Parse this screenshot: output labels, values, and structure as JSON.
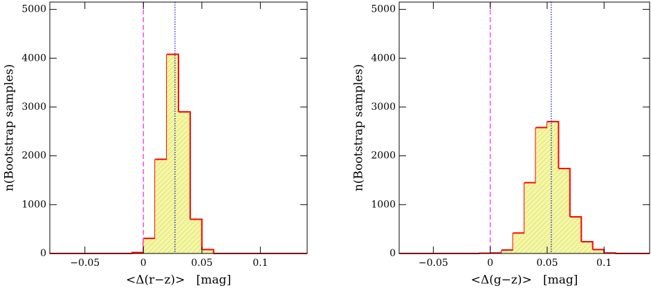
{
  "chart_data": [
    {
      "type": "histogram",
      "ylabel": "n(Bootstrap samples)",
      "xlabel": "<Δ(r−z)>   [mag]",
      "bins": [
        -0.08,
        -0.07,
        -0.06,
        -0.05,
        -0.04,
        -0.03,
        -0.02,
        -0.01,
        0,
        0.01,
        0.02,
        0.03,
        0.04,
        0.05,
        0.06,
        0.07,
        0.08,
        0.09,
        0.1,
        0.11,
        0.12,
        0.13,
        0.14
      ],
      "values": [
        0,
        0,
        0,
        0,
        0,
        0,
        0,
        20,
        310,
        1930,
        4080,
        2900,
        700,
        80,
        0,
        0,
        0,
        0,
        0,
        0,
        0,
        0
      ],
      "color": "#ff0000",
      "fill": "#eef08a",
      "xlim": [
        -0.08,
        0.14
      ],
      "ylim": [
        0,
        5150
      ],
      "xticks": [
        {
          "value": -0.05,
          "label": "−0.05"
        },
        0,
        0.05,
        0.1
      ],
      "yticks": [
        0,
        1000,
        2000,
        3000,
        4000,
        5000
      ],
      "vlines": [
        {
          "x": 0,
          "color": "#ff44ff",
          "style": "dashed"
        },
        {
          "x": 0.027,
          "color": "#0000cc",
          "style": "dotted"
        }
      ]
    },
    {
      "type": "histogram",
      "ylabel": "n(Bootstrap samples)",
      "xlabel": "<Δ(g−z)>   [mag]",
      "bins": [
        -0.08,
        -0.07,
        -0.06,
        -0.05,
        -0.04,
        -0.03,
        -0.02,
        -0.01,
        0,
        0.01,
        0.02,
        0.03,
        0.04,
        0.05,
        0.06,
        0.07,
        0.08,
        0.09,
        0.1,
        0.11,
        0.12,
        0.13,
        0.14
      ],
      "values": [
        0,
        0,
        0,
        0,
        0,
        0,
        0,
        5,
        10,
        70,
        420,
        1450,
        2580,
        2700,
        1740,
        750,
        240,
        80,
        10,
        0,
        0,
        0
      ],
      "color": "#ff0000",
      "fill": "#eef08a",
      "xlim": [
        -0.08,
        0.14
      ],
      "ylim": [
        0,
        5150
      ],
      "xticks": [
        {
          "value": -0.05,
          "label": "−0.05"
        },
        0,
        0.05,
        0.1
      ],
      "yticks": [
        0,
        1000,
        2000,
        3000,
        4000,
        5000
      ],
      "vlines": [
        {
          "x": 0,
          "color": "#ff44ff",
          "style": "dashed"
        },
        {
          "x": 0.0536,
          "color": "#0000cc",
          "style": "dotted"
        }
      ]
    }
  ]
}
